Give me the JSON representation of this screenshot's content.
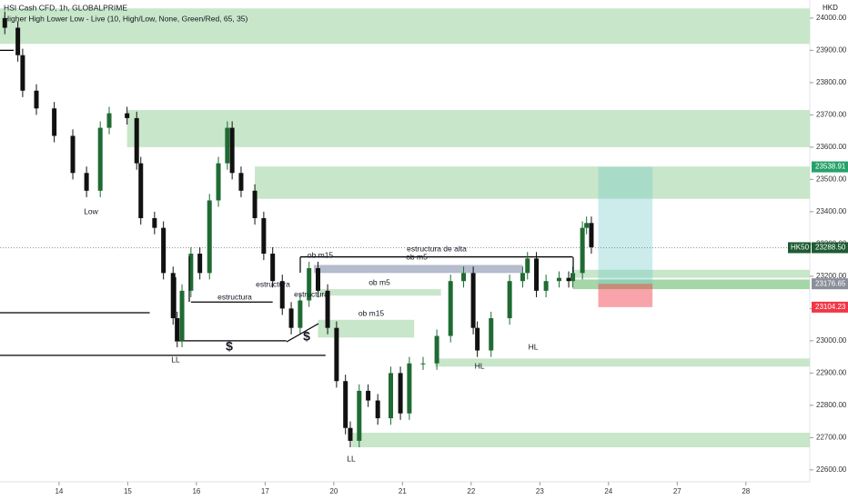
{
  "chart_data": {
    "type": "candlestick",
    "title": "HSI Cash CFD, 1h, GLOBALPRIME",
    "subtitle": "Higher High Lower Low - Live (10, High/Low, None, Green/Red, 65, 35)",
    "currency": "HKD",
    "up_color": "#1f6b33",
    "down_color": "#111111",
    "xlim": [
      -0.86,
      10.93
    ],
    "xticks": [
      {
        "value": 0,
        "label": "14"
      },
      {
        "value": 1,
        "label": "15"
      },
      {
        "value": 2,
        "label": "16"
      },
      {
        "value": 3,
        "label": "17"
      },
      {
        "value": 4,
        "label": "20"
      },
      {
        "value": 5,
        "label": "21"
      },
      {
        "value": 6,
        "label": "22"
      },
      {
        "value": 7,
        "label": "23"
      },
      {
        "value": 8,
        "label": "24"
      },
      {
        "value": 9,
        "label": "27"
      },
      {
        "value": 10,
        "label": "28"
      }
    ],
    "ylim": [
      22563,
      24056
    ],
    "yticks": [
      {
        "value": 22600,
        "label": "22600.00"
      },
      {
        "value": 22700,
        "label": "22700.00"
      },
      {
        "value": 22800,
        "label": "22800.00"
      },
      {
        "value": 22900,
        "label": "22900.00"
      },
      {
        "value": 23000,
        "label": "23000.00"
      },
      {
        "value": 23100,
        "label": "23100.00"
      },
      {
        "value": 23200,
        "label": "23200.00"
      },
      {
        "value": 23300,
        "label": "23300.00"
      },
      {
        "value": 23400,
        "label": "23400.00"
      },
      {
        "value": 23500,
        "label": "23500.00"
      },
      {
        "value": 23600,
        "label": "23600.00"
      },
      {
        "value": 23700,
        "label": "23700.00"
      },
      {
        "value": 23800,
        "label": "23800.00"
      },
      {
        "value": 23900,
        "label": "23900.00"
      },
      {
        "value": 24000,
        "label": "24000.00"
      }
    ],
    "x": [
      -0.79,
      -0.6,
      -0.53,
      -0.33,
      -0.07,
      0.2,
      0.4,
      0.6,
      0.73,
      0.99,
      1.13,
      1.19,
      1.39,
      1.52,
      1.66,
      1.72,
      1.79,
      1.92,
      2.05,
      2.19,
      2.32,
      2.45,
      2.52,
      2.65,
      2.85,
      2.98,
      3.11,
      3.25,
      3.38,
      3.51,
      3.64,
      3.77,
      3.91,
      4.04,
      4.17,
      4.24,
      4.37,
      4.5,
      4.64,
      4.83,
      4.97,
      5.1,
      5.3,
      5.5,
      5.7,
      5.89,
      6.03,
      6.09,
      6.29,
      6.56,
      6.75,
      6.82,
      6.95,
      7.09,
      7.28,
      7.42,
      7.48,
      7.62,
      7.68,
      7.75
    ],
    "open": [
      24000,
      23970,
      23885,
      23775,
      23720,
      23635,
      23520,
      23465,
      23660,
      23705,
      23690,
      23550,
      23380,
      23350,
      23210,
      23070,
      23000,
      23155,
      23270,
      23210,
      23435,
      23550,
      23660,
      23520,
      23465,
      23380,
      23270,
      23185,
      23100,
      23040,
      23125,
      23225,
      23155,
      23040,
      22875,
      22730,
      22690,
      22845,
      22815,
      22760,
      22900,
      22775,
      22930,
      22930,
      23015,
      23185,
      23210,
      23040,
      22970,
      23070,
      23185,
      23210,
      23255,
      23155,
      23185,
      23195,
      23185,
      23210,
      23350,
      23365
    ],
    "high": [
      24020,
      23990,
      23905,
      23795,
      23740,
      23655,
      23540,
      23680,
      23725,
      23725,
      23710,
      23570,
      23400,
      23370,
      23230,
      23090,
      23175,
      23290,
      23290,
      23455,
      23570,
      23680,
      23680,
      23540,
      23485,
      23400,
      23290,
      23205,
      23120,
      23145,
      23245,
      23245,
      23175,
      23060,
      22895,
      22750,
      22865,
      22865,
      22835,
      22920,
      22920,
      22950,
      22950,
      23035,
      23205,
      23230,
      23230,
      23060,
      23090,
      23205,
      23230,
      23275,
      23275,
      23205,
      23215,
      23215,
      23230,
      23370,
      23385,
      23385
    ],
    "low": [
      23950,
      23865,
      23755,
      23700,
      23615,
      23500,
      23445,
      23445,
      23640,
      23670,
      23530,
      23360,
      23330,
      23190,
      23050,
      22980,
      22980,
      23135,
      23190,
      23190,
      23415,
      23530,
      23500,
      23445,
      23360,
      23250,
      23165,
      23080,
      23020,
      23020,
      23105,
      23135,
      23020,
      22855,
      22710,
      22670,
      22670,
      22795,
      22740,
      22740,
      22755,
      22755,
      22910,
      22910,
      22995,
      23165,
      23020,
      22950,
      22950,
      23050,
      23165,
      23190,
      23135,
      23135,
      23165,
      23165,
      23165,
      23190,
      23330,
      23270
    ],
    "close": [
      23970,
      23885,
      23775,
      23720,
      23635,
      23520,
      23465,
      23660,
      23705,
      23690,
      23550,
      23380,
      23350,
      23210,
      23070,
      23000,
      23155,
      23270,
      23210,
      23435,
      23550,
      23660,
      23520,
      23465,
      23380,
      23270,
      23185,
      23100,
      23040,
      23125,
      23225,
      23155,
      23040,
      22875,
      22730,
      22690,
      22845,
      22815,
      22760,
      22900,
      22775,
      22930,
      22930,
      23015,
      23185,
      23210,
      23040,
      22970,
      23070,
      23185,
      23210,
      23255,
      23155,
      23185,
      23195,
      23185,
      23210,
      23350,
      23365,
      23290
    ],
    "zones": [
      {
        "lo": 23920,
        "hi": 24030,
        "x0": -0.86,
        "x1": 10.93,
        "color": "#c8e6c9"
      },
      {
        "lo": 23600,
        "hi": 23715,
        "x0": 0.99,
        "x1": 10.93,
        "color": "#c8e6c9"
      },
      {
        "lo": 23440,
        "hi": 23540,
        "x0": 2.85,
        "x1": 10.93,
        "color": "#c8e6c9"
      },
      {
        "lo": 23210,
        "hi": 23235,
        "x0": 3.71,
        "x1": 6.75,
        "color": "#b4bccd"
      },
      {
        "lo": 23140,
        "hi": 23160,
        "x0": 3.77,
        "x1": 5.56,
        "color": "#c8e6c9"
      },
      {
        "lo": 23010,
        "hi": 23065,
        "x0": 3.77,
        "x1": 5.17,
        "color": "#c8e6c9"
      },
      {
        "lo": 23195,
        "hi": 23220,
        "x0": 7.48,
        "x1": 10.93,
        "color": "#c8e6c9"
      },
      {
        "lo": 23160,
        "hi": 23190,
        "x0": 7.48,
        "x1": 10.93,
        "color": "#a5d6a7"
      },
      {
        "lo": 22920,
        "hi": 22945,
        "x0": 5.47,
        "x1": 10.93,
        "color": "#c8e6c9"
      },
      {
        "lo": 22670,
        "hi": 22715,
        "x0": 4.26,
        "x1": 10.93,
        "color": "#c8e6c9"
      },
      {
        "lo": 23176.65,
        "hi": 23538.91,
        "x0": 7.85,
        "x1": 8.64,
        "color": "rgba(110,200,200,0.35)"
      },
      {
        "lo": 23104.23,
        "hi": 23176.65,
        "x0": 7.85,
        "x1": 8.64,
        "color": "rgba(242,54,69,0.45)"
      }
    ],
    "levels": [
      {
        "price": 23900,
        "x0": -0.86,
        "x1": -0.66
      },
      {
        "price": 23087,
        "x0": -0.86,
        "x1": 1.32
      },
      {
        "price": 22955,
        "x0": -0.86,
        "x1": 3.88
      },
      {
        "price": 23120,
        "x0": 1.92,
        "x1": 3.11
      },
      {
        "price": 23260,
        "x0": 3.51,
        "x1": 7.48
      },
      {
        "price": 23000,
        "x0": 1.72,
        "x1": 3.31
      }
    ],
    "annotations": [
      {
        "text": "Low",
        "color": "#333"
      },
      {
        "text": "LL",
        "color": "#333"
      },
      {
        "text": "LL",
        "color": "#333"
      },
      {
        "text": "HL",
        "color": "#333"
      },
      {
        "text": "HL",
        "color": "#333"
      },
      {
        "text": "estructura",
        "color": "#131722"
      },
      {
        "text": "estructura",
        "color": "#131722"
      },
      {
        "text": "estructura",
        "color": "#131722"
      },
      {
        "text": "estructura de alta",
        "color": "#131722"
      },
      {
        "text": "$",
        "color": "#131722"
      },
      {
        "text": "$",
        "color": "#131722"
      },
      {
        "text": "ob m15",
        "color": "#9c27b0"
      },
      {
        "text": "ob m5",
        "color": "#9c27b0"
      },
      {
        "text": "ob m5",
        "color": "#9c27b0"
      },
      {
        "text": "ob m15",
        "color": "#9c27b0"
      }
    ],
    "last_price": 23288.5,
    "price_tags": [
      {
        "value": 23538.91,
        "label": "23538.91",
        "color": "#26a269"
      },
      {
        "value": 23288.5,
        "label": "23288.50",
        "symbol": "HK50",
        "color": "#1e5b32"
      },
      {
        "value": 23176.65,
        "label": "23176.65",
        "color": "#8a8f99"
      },
      {
        "value": 23104.23,
        "label": "23104.23",
        "color": "#f23645"
      }
    ]
  }
}
